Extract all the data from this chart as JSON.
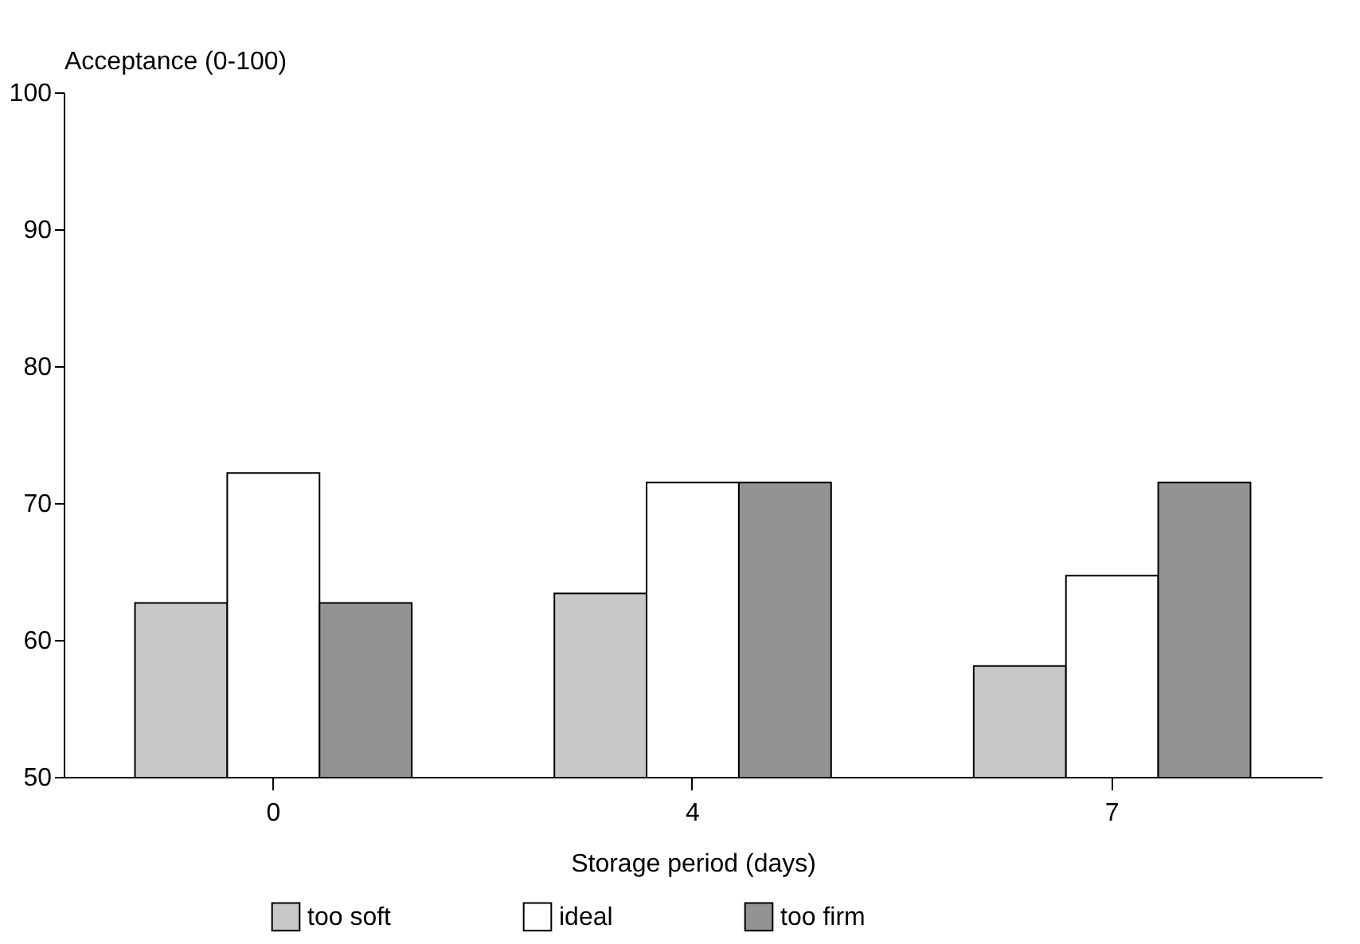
{
  "chart_data": {
    "type": "bar",
    "xlabel": "Storage period (days)",
    "ylabel": "Acceptance (0-100)",
    "categories": [
      "0",
      "4",
      "7"
    ],
    "series": [
      {
        "name": "too soft",
        "color": "#c8c8ca",
        "values": [
          62.7,
          63.4,
          58.1
        ]
      },
      {
        "name": "ideal",
        "color": "#ffffff",
        "values": [
          72.2,
          71.5,
          64.7
        ]
      },
      {
        "name": "too firm",
        "color": "#939396",
        "values": [
          62.7,
          71.5,
          71.5
        ]
      }
    ],
    "ylim": [
      50,
      100
    ],
    "yticks": [
      50,
      60,
      70,
      80,
      90,
      100
    ],
    "grid": false,
    "legend": "bottom"
  }
}
